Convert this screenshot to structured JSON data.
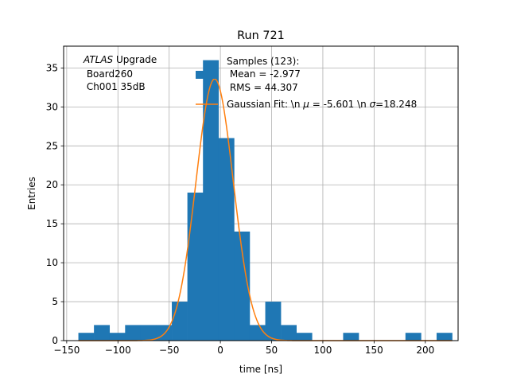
{
  "chart_data": {
    "type": "bar",
    "title": "Run 721",
    "xlabel": "time [ns]",
    "ylabel": "Entries",
    "xlim": [
      -153,
      232
    ],
    "ylim": [
      0,
      37.8
    ],
    "xticks": [
      -150,
      -100,
      -50,
      0,
      50,
      100,
      150,
      200
    ],
    "yticks": [
      0,
      5,
      10,
      15,
      20,
      25,
      30,
      35
    ],
    "grid": true,
    "annotation": {
      "italic": "ATLAS",
      "rest": " Upgrade",
      "line2": " Board260",
      "line3": " Ch001 35dB"
    },
    "legend": {
      "placement": "top-right",
      "hist_lines": [
        "Samples (123):",
        " Mean = -2.977",
        " RMS = 44.307"
      ],
      "fit_prefix": "Gaussian Fit: \\n ",
      "fit_mu_symbol": "μ",
      "fit_mid": " = -5.601 \\n ",
      "fit_sigma_symbol": "σ",
      "fit_suffix": "=18.248"
    },
    "histogram": {
      "name": "Samples (123)",
      "color": "#1f77b4",
      "bin_edges": [
        -138.6,
        -123.4,
        -108.2,
        -93,
        -77.8,
        -62.6,
        -47.4,
        -32.2,
        -17,
        -1.8,
        13.4,
        28.6,
        43.8,
        59,
        74.2,
        89.4,
        104.6,
        119.8,
        135,
        150.2,
        165.4,
        180.6,
        195.8,
        211,
        226.2
      ],
      "counts": [
        1,
        2,
        1,
        2,
        2,
        2,
        5,
        19,
        36,
        26,
        14,
        2,
        5,
        2,
        1,
        0,
        0,
        1,
        0,
        0,
        0,
        1,
        0,
        1
      ]
    },
    "fit": {
      "name": "Gaussian Fit",
      "color": "#ff7f0e",
      "mu": -5.601,
      "sigma": 18.248,
      "amplitude": 33.6
    }
  }
}
